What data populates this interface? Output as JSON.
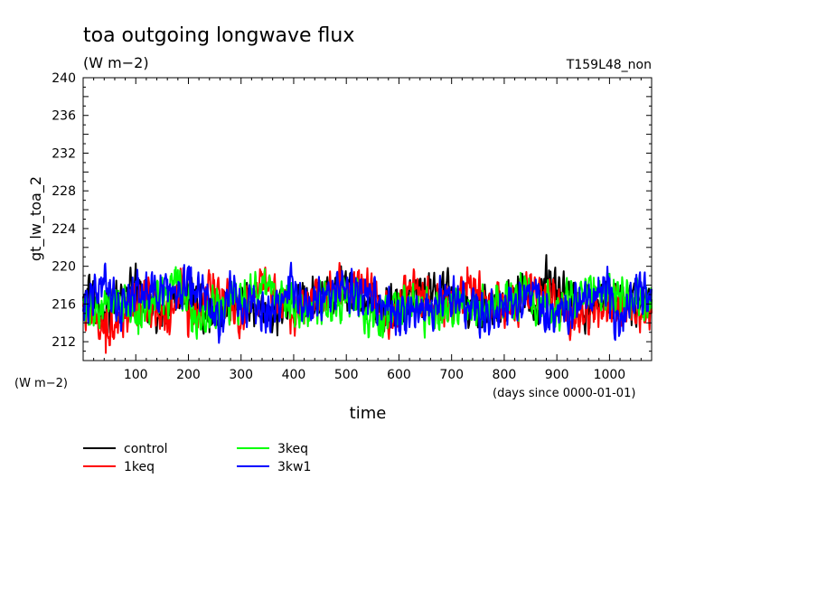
{
  "chart_data": {
    "type": "line",
    "title": "toa outgoing longwave flux",
    "subtitle": "(W m−2)",
    "run_label": "T159L48_non",
    "ylabel": "gt_lw_toa_2",
    "ylabel_units": "(W m−2)",
    "xlabel": "time",
    "xlabel_units": "(days since 0000-01-01)",
    "xlim": [
      0,
      1080
    ],
    "ylim": [
      210,
      240
    ],
    "x_ticks": [
      100,
      200,
      300,
      400,
      500,
      600,
      700,
      800,
      900,
      1000
    ],
    "y_ticks": [
      212,
      216,
      220,
      224,
      228,
      232,
      236,
      240
    ],
    "grid": false,
    "legend_position": "bottom-left",
    "mean_value": 216,
    "series": [
      {
        "name": "control",
        "color": "#000000",
        "points": [
          [
            0,
            216.8
          ],
          [
            8,
            217.6
          ],
          [
            40,
            214.2
          ],
          [
            80,
            217.9
          ],
          [
            100,
            220.3
          ],
          [
            140,
            213.1
          ],
          [
            190,
            219.1
          ],
          [
            240,
            213.0
          ],
          [
            300,
            217.5
          ],
          [
            360,
            213.6
          ],
          [
            420,
            217.9
          ],
          [
            470,
            218.5
          ],
          [
            490,
            220.0
          ],
          [
            560,
            214.3
          ],
          [
            660,
            218.6
          ],
          [
            780,
            215.0
          ],
          [
            830,
            218.7
          ],
          [
            860,
            214.0
          ],
          [
            880,
            221.2
          ],
          [
            950,
            214.5
          ],
          [
            1000,
            217.3
          ],
          [
            1060,
            216.2
          ],
          [
            1080,
            216.5
          ]
        ]
      },
      {
        "name": "1keq",
        "color": "#ff0000",
        "points": [
          [
            0,
            215.7
          ],
          [
            20,
            213.8
          ],
          [
            43,
            210.8
          ],
          [
            80,
            214.5
          ],
          [
            120,
            217.2
          ],
          [
            160,
            213.0
          ],
          [
            190,
            219.8
          ],
          [
            200,
            212.5
          ],
          [
            240,
            218.6
          ],
          [
            300,
            214.0
          ],
          [
            340,
            219.2
          ],
          [
            400,
            214.1
          ],
          [
            450,
            218.2
          ],
          [
            540,
            219.8
          ],
          [
            580,
            212.8
          ],
          [
            620,
            218.3
          ],
          [
            700,
            215.6
          ],
          [
            730,
            219.9
          ],
          [
            800,
            214.3
          ],
          [
            850,
            218.8
          ],
          [
            930,
            214.0
          ],
          [
            1040,
            215.6
          ],
          [
            1080,
            215.0
          ]
        ]
      },
      {
        "name": "3keq",
        "color": "#00ff00",
        "points": [
          [
            0,
            216.3
          ],
          [
            30,
            213.9
          ],
          [
            60,
            217.2
          ],
          [
            105,
            212.8
          ],
          [
            130,
            216.5
          ],
          [
            180,
            219.6
          ],
          [
            215,
            212.9
          ],
          [
            260,
            215.8
          ],
          [
            300,
            217.4
          ],
          [
            345,
            219.7
          ],
          [
            410,
            214.3
          ],
          [
            500,
            217.6
          ],
          [
            565,
            212.6
          ],
          [
            600,
            216.1
          ],
          [
            650,
            214.6
          ],
          [
            760,
            215.3
          ],
          [
            830,
            217.2
          ],
          [
            900,
            214.8
          ],
          [
            970,
            218.8
          ],
          [
            1010,
            217.8
          ],
          [
            1050,
            216.0
          ],
          [
            1080,
            215.5
          ]
        ]
      },
      {
        "name": "3kw1",
        "color": "#0000ff",
        "points": [
          [
            0,
            215.2
          ],
          [
            20,
            217.9
          ],
          [
            42,
            220.3
          ],
          [
            70,
            214.0
          ],
          [
            100,
            218.4
          ],
          [
            160,
            218.6
          ],
          [
            205,
            219.9
          ],
          [
            260,
            212.7
          ],
          [
            280,
            218.3
          ],
          [
            350,
            213.6
          ],
          [
            390,
            218.9
          ],
          [
            430,
            216.6
          ],
          [
            490,
            218.4
          ],
          [
            540,
            217.7
          ],
          [
            600,
            213.1
          ],
          [
            690,
            217.3
          ],
          [
            770,
            213.9
          ],
          [
            860,
            218.6
          ],
          [
            880,
            213.3
          ],
          [
            1000,
            218.7
          ],
          [
            1010,
            212.3
          ],
          [
            1050,
            218.0
          ],
          [
            1080,
            217.6
          ]
        ]
      }
    ]
  }
}
